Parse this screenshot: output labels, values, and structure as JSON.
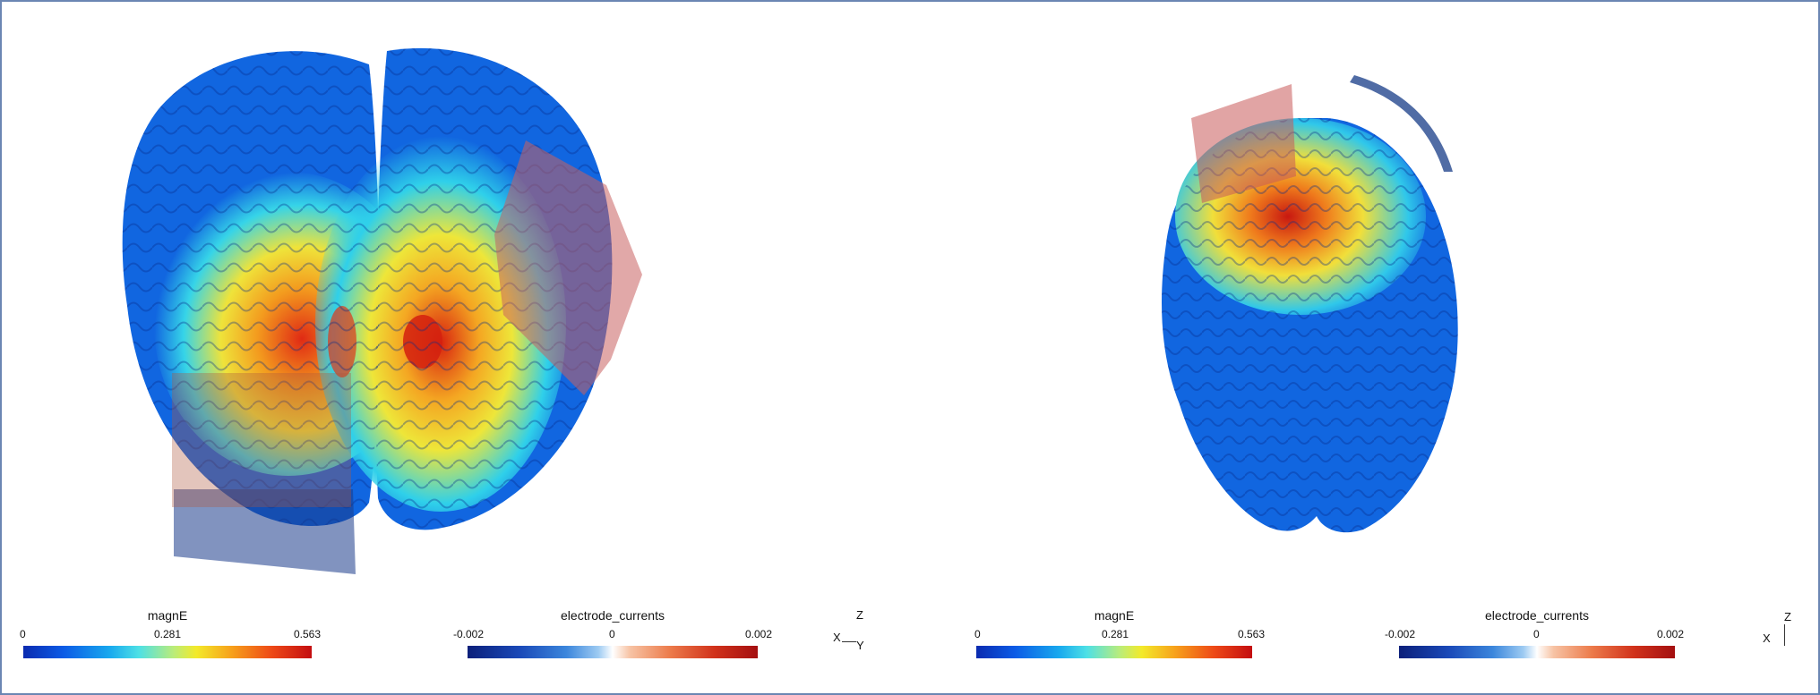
{
  "colorbars": [
    {
      "title": "magnE",
      "min": "0",
      "mid": "0.281",
      "max": "0.563"
    },
    {
      "title": "electrode_currents",
      "min": "-0.002",
      "mid": "0",
      "max": "0.002"
    },
    {
      "title": "magnE",
      "min": "0",
      "mid": "0.281",
      "max": "0.563"
    },
    {
      "title": "electrode_currents",
      "min": "-0.002",
      "mid": "0",
      "max": "0.002"
    }
  ],
  "axes_left": {
    "z": "Z",
    "x": "X",
    "y": "Y"
  },
  "axes_right": {
    "z": "Z",
    "x": "X"
  },
  "colors": {
    "frame": "#6b86b3",
    "electrode": "#d45a5a"
  }
}
